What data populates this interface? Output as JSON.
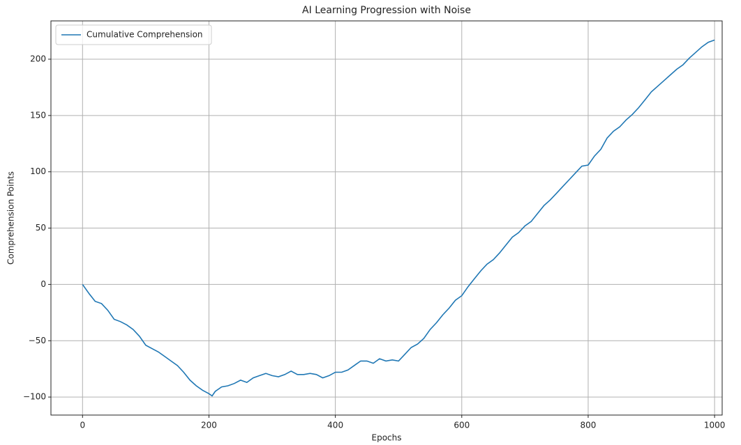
{
  "chart_data": {
    "type": "line",
    "title": "AI Learning Progression with Noise",
    "xlabel": "Epochs",
    "ylabel": "Comprehension Points",
    "x": [
      0,
      10,
      20,
      30,
      40,
      50,
      60,
      70,
      80,
      90,
      100,
      110,
      120,
      130,
      140,
      150,
      160,
      170,
      180,
      190,
      200,
      205,
      210,
      220,
      230,
      240,
      250,
      260,
      270,
      280,
      290,
      300,
      310,
      320,
      330,
      340,
      350,
      360,
      370,
      380,
      390,
      400,
      410,
      420,
      430,
      440,
      450,
      460,
      470,
      480,
      490,
      500,
      510,
      520,
      530,
      540,
      550,
      560,
      570,
      580,
      590,
      600,
      610,
      620,
      630,
      640,
      650,
      660,
      670,
      680,
      690,
      700,
      710,
      720,
      730,
      740,
      750,
      760,
      770,
      780,
      790,
      800,
      810,
      820,
      830,
      840,
      850,
      860,
      870,
      880,
      890,
      900,
      910,
      920,
      930,
      940,
      950,
      960,
      970,
      980,
      990,
      1000
    ],
    "series": [
      {
        "name": "Cumulative Comprehension",
        "color": "#1f77b4",
        "values": [
          0,
          -8,
          -15,
          -17,
          -23,
          -31,
          -33,
          -36,
          -40,
          -46,
          -54,
          -57,
          -60,
          -64,
          -68,
          -72,
          -78,
          -85,
          -90,
          -94,
          -97,
          -99,
          -95,
          -91,
          -90,
          -88,
          -85,
          -87,
          -83,
          -81,
          -79,
          -81,
          -82,
          -80,
          -77,
          -80,
          -80,
          -79,
          -80,
          -83,
          -81,
          -78,
          -78,
          -76,
          -72,
          -68,
          -68,
          -70,
          -66,
          -68,
          -67,
          -68,
          -62,
          -56,
          -53,
          -48,
          -40,
          -34,
          -27,
          -21,
          -14,
          -10,
          -2,
          5,
          12,
          18,
          22,
          28,
          35,
          42,
          46,
          52,
          56,
          63,
          70,
          75,
          81,
          87,
          93,
          99,
          105,
          106,
          114,
          120,
          130,
          136,
          140,
          146,
          151,
          157,
          164,
          171,
          176,
          181,
          186,
          191,
          195,
          201,
          206,
          211,
          215,
          217
        ]
      }
    ],
    "xlim": [
      -50,
      1012
    ],
    "ylim": [
      -116,
      234
    ],
    "xticks": [
      0,
      200,
      400,
      600,
      800,
      1000
    ],
    "yticks": [
      {
        "value": -100,
        "label": "−100"
      },
      {
        "value": -50,
        "label": "−50"
      },
      0,
      50,
      100,
      150,
      200
    ],
    "grid": true,
    "legend": "upper left"
  }
}
